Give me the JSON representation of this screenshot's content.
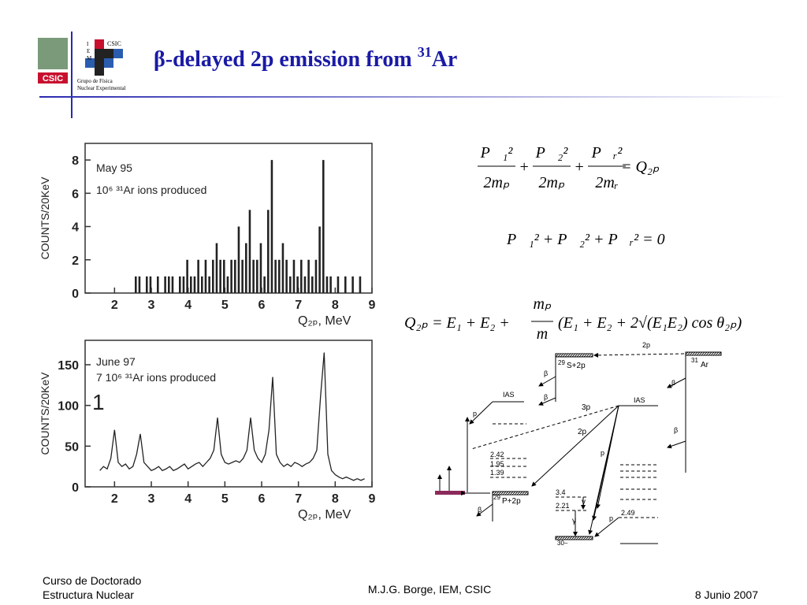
{
  "header": {
    "title": "β-delayed 2p emission from ",
    "title_sup": "31",
    "title_end": "Ar",
    "logo": {
      "csic": "CSIC",
      "iem": [
        "I",
        "E",
        "M"
      ],
      "csic_small": "CSIC",
      "group": [
        "Grupo de Física",
        "Nuclear Experimental"
      ]
    }
  },
  "charts": [
    {
      "type": "bar",
      "annotations": [
        "May 95",
        "10⁶ ³¹Ar ions produced"
      ],
      "xlabel": "Q₂ₚ, MeV",
      "ylabel": "COUNTS/20KeV",
      "xlim": [
        1.2,
        9
      ],
      "xticks": [
        2,
        3,
        4,
        5,
        6,
        7,
        8,
        9
      ],
      "ylim": [
        0,
        9
      ],
      "yticks": [
        0,
        2,
        4,
        6,
        8
      ],
      "color": "#222222",
      "x": [
        1.6,
        1.7,
        1.8,
        1.9,
        2.0,
        2.1,
        2.2,
        2.3,
        2.4,
        2.5,
        2.6,
        2.7,
        2.8,
        2.9,
        3.0,
        3.1,
        3.2,
        3.3,
        3.4,
        3.5,
        3.6,
        3.7,
        3.8,
        3.9,
        4.0,
        4.1,
        4.2,
        4.3,
        4.4,
        4.5,
        4.6,
        4.7,
        4.8,
        4.9,
        5.0,
        5.1,
        5.2,
        5.3,
        5.4,
        5.5,
        5.6,
        5.7,
        5.8,
        5.9,
        6.0,
        6.1,
        6.2,
        6.3,
        6.4,
        6.5,
        6.6,
        6.7,
        6.8,
        6.9,
        7.0,
        7.1,
        7.2,
        7.3,
        7.4,
        7.5,
        7.6,
        7.7,
        7.8,
        7.9,
        8.0,
        8.1,
        8.2,
        8.3,
        8.4,
        8.5,
        8.6,
        8.7,
        8.8
      ],
      "values": [
        0,
        0,
        0,
        0,
        0,
        0,
        0,
        0,
        0,
        0,
        1,
        1,
        0,
        1,
        1,
        0,
        1,
        0,
        1,
        1,
        1,
        0,
        1,
        1,
        2,
        1,
        1,
        2,
        1,
        2,
        1,
        2,
        3,
        2,
        2,
        1,
        2,
        2,
        4,
        2,
        3,
        5,
        2,
        2,
        3,
        1,
        5,
        8,
        2,
        2,
        3,
        2,
        1,
        2,
        1,
        2,
        1,
        2,
        1,
        2,
        4,
        8,
        1,
        1,
        0,
        1,
        0,
        1,
        0,
        1,
        0,
        1,
        0
      ]
    },
    {
      "type": "line",
      "annotations": [
        "June 97",
        "7 10⁶ ³¹Ar ions produced",
        "1"
      ],
      "xlabel": "Q₂ₚ, MeV",
      "ylabel": "COUNTS/20KeV",
      "xlim": [
        1.2,
        9
      ],
      "xticks": [
        2,
        3,
        4,
        5,
        6,
        7,
        8,
        9
      ],
      "ylim": [
        0,
        180
      ],
      "yticks": [
        0,
        50,
        100,
        150
      ],
      "color": "#222222",
      "x": [
        1.6,
        1.7,
        1.8,
        1.9,
        2.0,
        2.1,
        2.2,
        2.3,
        2.4,
        2.5,
        2.6,
        2.7,
        2.8,
        2.9,
        3.0,
        3.1,
        3.2,
        3.3,
        3.4,
        3.5,
        3.6,
        3.7,
        3.8,
        3.9,
        4.0,
        4.1,
        4.2,
        4.3,
        4.4,
        4.5,
        4.6,
        4.7,
        4.8,
        4.9,
        5.0,
        5.1,
        5.2,
        5.3,
        5.4,
        5.5,
        5.6,
        5.7,
        5.8,
        5.9,
        6.0,
        6.1,
        6.2,
        6.3,
        6.4,
        6.5,
        6.6,
        6.7,
        6.8,
        6.9,
        7.0,
        7.1,
        7.2,
        7.3,
        7.4,
        7.5,
        7.6,
        7.7,
        7.8,
        7.9,
        8.0,
        8.1,
        8.2,
        8.3,
        8.4,
        8.5,
        8.6,
        8.7,
        8.8
      ],
      "values": [
        20,
        25,
        22,
        35,
        70,
        30,
        25,
        28,
        22,
        25,
        40,
        65,
        30,
        25,
        20,
        22,
        25,
        20,
        22,
        25,
        20,
        22,
        25,
        28,
        22,
        25,
        28,
        30,
        25,
        30,
        35,
        45,
        85,
        40,
        30,
        28,
        30,
        32,
        30,
        35,
        45,
        85,
        45,
        35,
        30,
        40,
        70,
        135,
        40,
        30,
        25,
        28,
        25,
        30,
        28,
        25,
        28,
        30,
        35,
        45,
        110,
        165,
        40,
        20,
        15,
        12,
        10,
        12,
        10,
        8,
        10,
        8,
        10
      ]
    }
  ],
  "equations": {
    "eq1": {
      "terms": [
        {
          "num": "P⃗₁²",
          "den": "2mₚ"
        },
        {
          "num": "P⃗₂²",
          "den": "2mₚ"
        },
        {
          "num": "P⃗ᵣ²",
          "den": "2mᵣ"
        }
      ],
      "plus": "+",
      "rhs": "= Q₂ₚ"
    },
    "eq2": "P⃗₁² + P⃗₂² + P⃗ᵣ² = 0",
    "eq3": {
      "lhs": "Q₂ₚ = E₁ + E₂ +",
      "num": "mₚ",
      "den": "m",
      "rest": "(E₁ + E₂ + 2√(E₁E₂) cos θ₂ₚ)"
    }
  },
  "diagram": {
    "labels": [
      "2p",
      "29",
      "S+2p",
      "31",
      "Ar",
      "β",
      "β",
      "β",
      "β",
      "IAS",
      "IAS",
      "p",
      "3p",
      "2p",
      "p",
      "2.42",
      "1.95",
      "1.39",
      "3.4",
      "2.21",
      "2.49",
      "γ",
      "γ",
      "p",
      "29",
      "P+2p",
      "β",
      "30−"
    ]
  },
  "footer": {
    "left": [
      "Curso de Doctorado",
      "Estructura Nuclear"
    ],
    "center": "M.J.G. Borge, IEM, CSIC",
    "right": "8 Junio 2007"
  }
}
